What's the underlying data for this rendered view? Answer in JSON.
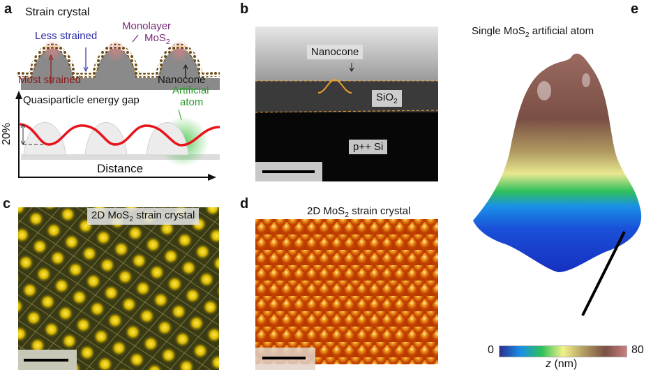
{
  "panels": {
    "a": {
      "label": "a",
      "title": "Strain crystal",
      "less_strained": "Less strained",
      "monolayer_line1": "Monolayer",
      "monolayer_line2": "MoS",
      "monolayer_sub": "2",
      "most_strained": "Most strained",
      "nanocone": "Nanocone",
      "gap_label": "Quasiparticle energy gap",
      "artificial_line1": "Artificial",
      "artificial_line2": "atom",
      "y_label": "20%",
      "x_label": "Distance",
      "colors": {
        "less_strained": "#2a2aa8",
        "monolayer": "#7a2a7a",
        "most_strained": "#8b1a1a",
        "artificial": "#2a9a2a",
        "gap_curve": "#e8141c"
      }
    },
    "b": {
      "label": "b",
      "nanocone": "Nanocone",
      "oxide": "SiO",
      "oxide_sub": "2",
      "substrate": "p++ Si"
    },
    "c": {
      "label": "c",
      "caption_pre": "2D MoS",
      "caption_sub": "2",
      "caption_post": " strain crystal"
    },
    "d": {
      "label": "d",
      "caption_pre": "2D MoS",
      "caption_sub": "2",
      "caption_post": " strain crystal"
    },
    "e": {
      "label": "e",
      "title_pre": "Single MoS",
      "title_sub": "2",
      "title_post": " artificial atom",
      "colorbar_min": "0",
      "colorbar_max": "80",
      "colorbar_var": "z",
      "colorbar_unit": " (nm)",
      "colormap": [
        "#2b2f8f",
        "#1a8fe8",
        "#2fc05a",
        "#f2f28a",
        "#b09a60",
        "#7a4f45",
        "#c88080"
      ]
    }
  }
}
